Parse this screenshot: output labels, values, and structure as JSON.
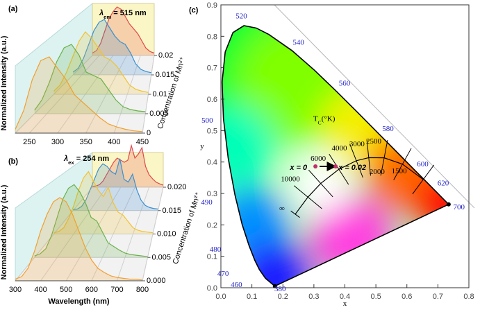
{
  "chart_data": [
    {
      "type": "waterfall",
      "panel_label": "(a)",
      "annotation": {
        "symbol": "λ",
        "subscript": "em",
        "text": " = 515 nm"
      },
      "ylabel": "Normalized Intensity (a.u.)",
      "zlabel": "Concentration of Mn²⁺",
      "x": [
        225,
        240,
        255,
        270,
        285,
        300,
        315,
        330,
        345,
        360,
        375,
        390,
        405,
        420,
        435,
        450
      ],
      "xlim": [
        225,
        450
      ],
      "xticks": [
        250,
        300,
        350,
        400,
        450
      ],
      "ylim": [
        0,
        1
      ],
      "zlim": [
        0,
        0.02
      ],
      "zticks": [
        0,
        0.005,
        0.01,
        0.015,
        0.02
      ],
      "series": [
        {
          "color": "#f0a030",
          "values": [
            0.05,
            0.3,
            0.7,
            0.95,
            1.0,
            0.85,
            0.7,
            0.5,
            0.4,
            0.3,
            0.2,
            0.12,
            0.08,
            0.05,
            0.03,
            0.02
          ]
        },
        {
          "color": "#6ab04c",
          "values": [
            0.05,
            0.2,
            0.45,
            0.75,
            0.95,
            1.0,
            0.85,
            0.6,
            0.55,
            0.5,
            0.35,
            0.2,
            0.1,
            0.06,
            0.04,
            0.03
          ]
        },
        {
          "color": "#f2c230",
          "values": [
            0.05,
            0.15,
            0.35,
            0.6,
            0.85,
            1.0,
            0.9,
            0.75,
            0.6,
            0.55,
            0.45,
            0.3,
            0.15,
            0.08,
            0.05,
            0.03
          ]
        },
        {
          "color": "#3a8fd0",
          "values": [
            0.05,
            0.12,
            0.3,
            0.55,
            0.8,
            0.95,
            1.0,
            0.85,
            0.7,
            0.6,
            0.55,
            0.4,
            0.2,
            0.1,
            0.06,
            0.04
          ]
        },
        {
          "color": "#e04848",
          "values": [
            0.05,
            0.1,
            0.25,
            0.5,
            0.75,
            0.9,
            1.0,
            0.95,
            0.8,
            0.65,
            0.55,
            0.45,
            0.3,
            0.15,
            0.08,
            0.05
          ]
        }
      ]
    },
    {
      "type": "waterfall",
      "panel_label": "(b)",
      "annotation": {
        "symbol": "λ",
        "subscript": "ex",
        "text": " = 254 nm"
      },
      "ylabel": "Normalized Intensity (a.u.)",
      "xlabel": "Wavelength (nm)",
      "zlabel": "Concentration of Mn²⁺",
      "x": [
        300,
        325,
        350,
        375,
        400,
        425,
        450,
        475,
        500,
        525,
        550,
        575,
        600,
        625,
        650,
        675,
        700,
        725,
        750,
        775,
        800
      ],
      "xlim": [
        300,
        800
      ],
      "xticks": [
        300,
        400,
        500,
        600,
        700,
        800
      ],
      "ylim": [
        0,
        1
      ],
      "zlim": [
        0,
        0.02
      ],
      "zticks": [
        {
          "value": 0,
          "label": "0.000"
        },
        0.005,
        {
          "value": 0.01,
          "label": "0.010"
        },
        0.015,
        {
          "value": 0.02,
          "label": "0.020"
        }
      ],
      "series": [
        {
          "color": "#f0a030",
          "values": [
            0.02,
            0.05,
            0.15,
            0.35,
            0.6,
            0.8,
            0.95,
            1.0,
            0.95,
            0.8,
            0.6,
            0.4,
            0.25,
            0.15,
            0.1,
            0.06,
            0.04,
            0.03,
            0.02,
            0.02,
            0.01
          ]
        },
        {
          "color": "#6ab04c",
          "values": [
            0.02,
            0.05,
            0.12,
            0.3,
            0.55,
            0.8,
            0.95,
            1.0,
            0.9,
            0.75,
            0.55,
            0.5,
            0.35,
            0.2,
            0.15,
            0.1,
            0.06,
            0.04,
            0.03,
            0.02,
            0.01
          ]
        },
        {
          "color": "#f2c230",
          "values": [
            0.02,
            0.04,
            0.1,
            0.25,
            0.45,
            0.7,
            0.9,
            1.0,
            0.85,
            0.7,
            0.6,
            0.75,
            0.5,
            0.35,
            0.3,
            0.2,
            0.1,
            0.06,
            0.04,
            0.03,
            0.02
          ]
        },
        {
          "color": "#3a8fd0",
          "values": [
            0.02,
            0.03,
            0.08,
            0.2,
            0.4,
            0.6,
            0.8,
            0.9,
            0.85,
            0.75,
            0.7,
            1.0,
            0.6,
            0.55,
            0.7,
            0.4,
            0.2,
            0.1,
            0.06,
            0.04,
            0.03
          ]
        },
        {
          "color": "#e04848",
          "values": [
            0.02,
            0.03,
            0.06,
            0.15,
            0.3,
            0.45,
            0.6,
            0.7,
            0.65,
            0.6,
            0.65,
            1.0,
            0.7,
            0.8,
            0.95,
            0.5,
            0.3,
            0.2,
            0.12,
            0.08,
            0.05
          ]
        }
      ]
    },
    {
      "type": "cie",
      "panel_label": "(c)",
      "xlabel": "x",
      "ylabel": "y",
      "xlim": [
        0,
        0.8
      ],
      "ylim": [
        0,
        0.9
      ],
      "xticks": [
        {
          "value": 0,
          "label": "0.0"
        },
        0.1,
        0.2,
        0.3,
        0.4,
        0.5,
        0.6,
        0.7,
        0.8
      ],
      "yticks": [
        {
          "value": 0,
          "label": "0.0"
        },
        0.1,
        0.2,
        0.3,
        0.4,
        0.5,
        0.6,
        0.7,
        0.8,
        0.9
      ],
      "spectral_locus": {
        "x": [
          0.1741,
          0.144,
          0.1241,
          0.1096,
          0.0913,
          0.0687,
          0.0454,
          0.0235,
          0.0082,
          0.0039,
          0.0139,
          0.0389,
          0.0743,
          0.1142,
          0.1547,
          0.2296,
          0.3016,
          0.3731,
          0.4441,
          0.5125,
          0.5752,
          0.627,
          0.6658,
          0.6915,
          0.719,
          0.7347
        ],
        "y": [
          0.005,
          0.0297,
          0.0578,
          0.0868,
          0.1327,
          0.2007,
          0.295,
          0.4127,
          0.5384,
          0.6548,
          0.7502,
          0.812,
          0.8338,
          0.8262,
          0.8059,
          0.7543,
          0.6923,
          0.6245,
          0.5547,
          0.4866,
          0.4242,
          0.3725,
          0.334,
          0.3083,
          0.2809,
          0.2653
        ]
      },
      "wavelength_labels": [
        {
          "label": "520",
          "x": 0.066,
          "y": 0.868
        },
        {
          "label": "540",
          "x": 0.25,
          "y": 0.784
        },
        {
          "label": "560",
          "x": 0.399,
          "y": 0.654
        },
        {
          "label": "580",
          "x": 0.539,
          "y": 0.51
        },
        {
          "label": "600",
          "x": 0.651,
          "y": 0.397
        },
        {
          "label": "620",
          "x": 0.717,
          "y": 0.336
        },
        {
          "label": "700",
          "x": 0.768,
          "y": 0.26
        },
        {
          "label": "500",
          "x": -0.044,
          "y": 0.536
        },
        {
          "label": "490",
          "x": -0.046,
          "y": 0.276
        },
        {
          "label": "480",
          "x": -0.018,
          "y": 0.126
        },
        {
          "label": "470",
          "x": 0.007,
          "y": 0.049
        },
        {
          "label": "460",
          "x": 0.05,
          "y": 0.013
        },
        {
          "label": "380",
          "x": 0.191,
          "y": 0.0
        }
      ],
      "planckian_locus": {
        "x": [
          0.2399,
          0.2807,
          0.3221,
          0.3805,
          0.4369,
          0.4769,
          0.5267,
          0.5857,
          0.6528
        ],
        "y": [
          0.234,
          0.2883,
          0.3318,
          0.3768,
          0.4041,
          0.4137,
          0.4133,
          0.3931,
          0.3444
        ]
      },
      "temperature_title": {
        "symbol": "T",
        "subscript": "C",
        "text": "(°K)",
        "x": 0.333,
        "y": 0.53
      },
      "temperature_labels": [
        {
          "label": "10000",
          "x": 0.224,
          "y": 0.347
        },
        {
          "label": "6000",
          "x": 0.314,
          "y": 0.413
        },
        {
          "label": "4000",
          "x": 0.382,
          "y": 0.446
        },
        {
          "label": "3000",
          "x": 0.439,
          "y": 0.459
        },
        {
          "label": "2500",
          "x": 0.493,
          "y": 0.468
        },
        {
          "label": "2000",
          "x": 0.504,
          "y": 0.371
        },
        {
          "label": "1500",
          "x": 0.575,
          "y": 0.373
        },
        {
          "label": "∞",
          "x": 0.197,
          "y": 0.254
        }
      ],
      "points": {
        "x": [
          0.305,
          0.37
        ],
        "y": [
          0.386,
          0.386
        ],
        "color": "#c0306a",
        "labels": [
          "x = 0",
          "x = 0.02"
        ]
      }
    }
  ]
}
